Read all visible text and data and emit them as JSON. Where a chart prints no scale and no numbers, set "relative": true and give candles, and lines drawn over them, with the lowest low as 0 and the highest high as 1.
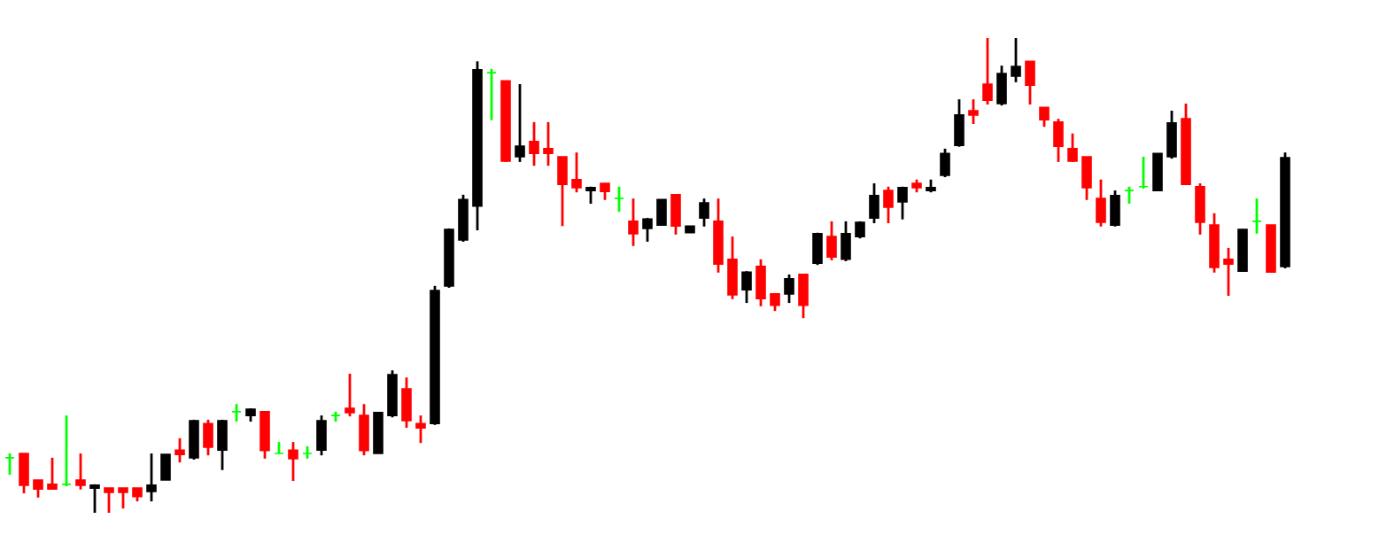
{
  "chart_data": {
    "type": "candlestick",
    "relative": true,
    "categories": [
      null,
      null,
      null,
      null,
      null,
      null,
      null,
      null,
      null,
      null,
      null,
      null,
      null,
      null,
      null,
      null,
      null,
      null,
      null,
      null,
      null,
      null,
      null,
      null,
      null,
      null,
      null,
      null,
      null,
      null,
      null,
      null,
      null,
      null,
      null,
      null,
      null,
      null,
      null,
      null,
      null,
      null,
      null,
      null,
      null,
      null,
      null,
      null,
      null,
      null,
      null,
      null,
      null,
      null,
      null,
      null,
      null,
      null,
      null,
      null,
      null,
      null,
      null,
      null,
      null,
      null,
      null,
      null,
      null,
      null,
      null,
      null,
      null,
      null,
      null,
      null,
      null,
      null,
      null,
      null,
      null,
      null,
      null,
      null,
      null,
      null,
      null,
      null,
      null,
      null,
      null
    ],
    "ohlc": [
      [
        0.116,
        0.125,
        0.08,
        0.116
      ],
      [
        0.125,
        0.125,
        0.041,
        0.058
      ],
      [
        0.069,
        0.069,
        0.032,
        0.05
      ],
      [
        0.06,
        0.116,
        0.049,
        0.05
      ],
      [
        0.06,
        0.205,
        0.056,
        0.06
      ],
      [
        0.069,
        0.125,
        0.049,
        0.058
      ],
      [
        0.052,
        0.06,
        0.0,
        0.058
      ],
      [
        0.052,
        0.052,
        0.0,
        0.043
      ],
      [
        0.052,
        0.052,
        0.009,
        0.043
      ],
      [
        0.052,
        0.052,
        0.024,
        0.034
      ],
      [
        0.045,
        0.125,
        0.024,
        0.058
      ],
      [
        0.069,
        0.123,
        0.069,
        0.123
      ],
      [
        0.132,
        0.157,
        0.106,
        0.123
      ],
      [
        0.116,
        0.196,
        0.112,
        0.194
      ],
      [
        0.188,
        0.196,
        0.121,
        0.138
      ],
      [
        0.132,
        0.196,
        0.09,
        0.194
      ],
      [
        0.213,
        0.229,
        0.192,
        0.213
      ],
      [
        0.205,
        0.22,
        0.192,
        0.218
      ],
      [
        0.213,
        0.213,
        0.114,
        0.131
      ],
      [
        0.125,
        0.149,
        0.125,
        0.125
      ],
      [
        0.132,
        0.149,
        0.067,
        0.114
      ],
      [
        0.125,
        0.14,
        0.114,
        0.125
      ],
      [
        0.132,
        0.205,
        0.121,
        0.194
      ],
      [
        0.205,
        0.213,
        0.192,
        0.205
      ],
      [
        0.22,
        0.293,
        0.203,
        0.211
      ],
      [
        0.205,
        0.229,
        0.121,
        0.131
      ],
      [
        0.125,
        0.211,
        0.125,
        0.211
      ],
      [
        0.205,
        0.3,
        0.201,
        0.291
      ],
      [
        0.261,
        0.285,
        0.179,
        0.194
      ],
      [
        0.188,
        0.205,
        0.147,
        0.179
      ],
      [
        0.188,
        0.478,
        0.185,
        0.468
      ],
      [
        0.478,
        0.599,
        0.474,
        0.597
      ],
      [
        0.575,
        0.67,
        0.571,
        0.66
      ],
      [
        0.646,
        0.951,
        0.595,
        0.933
      ],
      [
        0.927,
        0.935,
        0.827,
        0.927
      ],
      [
        0.91,
        0.91,
        0.739,
        0.741
      ],
      [
        0.75,
        0.903,
        0.739,
        0.772
      ],
      [
        0.782,
        0.823,
        0.731,
        0.757
      ],
      [
        0.767,
        0.823,
        0.731,
        0.757
      ],
      [
        0.75,
        0.75,
        0.604,
        0.692
      ],
      [
        0.702,
        0.759,
        0.675,
        0.685
      ],
      [
        0.679,
        0.687,
        0.651,
        0.685
      ],
      [
        0.694,
        0.694,
        0.659,
        0.677
      ],
      [
        0.662,
        0.687,
        0.634,
        0.662
      ],
      [
        0.614,
        0.662,
        0.562,
        0.588
      ],
      [
        0.599,
        0.621,
        0.571,
        0.619
      ],
      [
        0.606,
        0.66,
        0.606,
        0.66
      ],
      [
        0.67,
        0.67,
        0.586,
        0.604
      ],
      [
        0.59,
        0.604,
        0.59,
        0.604
      ],
      [
        0.621,
        0.662,
        0.603,
        0.653
      ],
      [
        0.614,
        0.662,
        0.506,
        0.524
      ],
      [
        0.534,
        0.582,
        0.45,
        0.459
      ],
      [
        0.47,
        0.509,
        0.442,
        0.507
      ],
      [
        0.519,
        0.534,
        0.435,
        0.451
      ],
      [
        0.461,
        0.461,
        0.425,
        0.437
      ],
      [
        0.461,
        0.502,
        0.442,
        0.493
      ],
      [
        0.502,
        0.502,
        0.41,
        0.437
      ],
      [
        0.526,
        0.59,
        0.522,
        0.588
      ],
      [
        0.582,
        0.614,
        0.532,
        0.539
      ],
      [
        0.534,
        0.614,
        0.53,
        0.588
      ],
      [
        0.582,
        0.614,
        0.578,
        0.612
      ],
      [
        0.621,
        0.694,
        0.61,
        0.668
      ],
      [
        0.679,
        0.687,
        0.61,
        0.644
      ],
      [
        0.655,
        0.687,
        0.618,
        0.685
      ],
      [
        0.694,
        0.702,
        0.675,
        0.685
      ],
      [
        0.679,
        0.702,
        0.675,
        0.685
      ],
      [
        0.711,
        0.767,
        0.707,
        0.757
      ],
      [
        0.774,
        0.871,
        0.771,
        0.838
      ],
      [
        0.847,
        0.871,
        0.819,
        0.838
      ],
      [
        0.903,
        1.0,
        0.86,
        0.869
      ],
      [
        0.862,
        0.942,
        0.858,
        0.925
      ],
      [
        0.92,
        1.0,
        0.907,
        0.94
      ],
      [
        0.951,
        0.951,
        0.86,
        0.901
      ],
      [
        0.854,
        0.854,
        0.813,
        0.828
      ],
      [
        0.823,
        0.83,
        0.739,
        0.772
      ],
      [
        0.767,
        0.799,
        0.739,
        0.741
      ],
      [
        0.75,
        0.75,
        0.659,
        0.685
      ],
      [
        0.662,
        0.702,
        0.603,
        0.612
      ],
      [
        0.606,
        0.679,
        0.603,
        0.668
      ],
      [
        0.679,
        0.687,
        0.651,
        0.679
      ],
      [
        0.687,
        0.75,
        0.683,
        0.687
      ],
      [
        0.679,
        0.757,
        0.679,
        0.757
      ],
      [
        0.75,
        0.847,
        0.746,
        0.821
      ],
      [
        0.83,
        0.862,
        0.692,
        0.692
      ],
      [
        0.687,
        0.694,
        0.586,
        0.612
      ],
      [
        0.606,
        0.631,
        0.506,
        0.517
      ],
      [
        0.534,
        0.558,
        0.457,
        0.524
      ],
      [
        0.509,
        0.597,
        0.509,
        0.597
      ],
      [
        0.614,
        0.662,
        0.588,
        0.614
      ],
      [
        0.606,
        0.606,
        0.506,
        0.507
      ],
      [
        0.519,
        0.759,
        0.515,
        0.748
      ]
    ],
    "colors": [
      "#00ff00",
      "#ff0000",
      "#ff0000",
      "#ff0000",
      "#00ff00",
      "#ff0000",
      "#000000",
      "#ff0000",
      "#ff0000",
      "#ff0000",
      "#000000",
      "#000000",
      "#ff0000",
      "#000000",
      "#ff0000",
      "#000000",
      "#00ff00",
      "#000000",
      "#ff0000",
      "#00ff00",
      "#ff0000",
      "#00ff00",
      "#000000",
      "#00ff00",
      "#ff0000",
      "#ff0000",
      "#000000",
      "#000000",
      "#ff0000",
      "#ff0000",
      "#000000",
      "#000000",
      "#000000",
      "#000000",
      "#00ff00",
      "#ff0000",
      "#000000",
      "#ff0000",
      "#ff0000",
      "#ff0000",
      "#ff0000",
      "#000000",
      "#ff0000",
      "#00ff00",
      "#ff0000",
      "#000000",
      "#000000",
      "#ff0000",
      "#000000",
      "#000000",
      "#ff0000",
      "#ff0000",
      "#000000",
      "#ff0000",
      "#ff0000",
      "#000000",
      "#ff0000",
      "#000000",
      "#ff0000",
      "#000000",
      "#000000",
      "#000000",
      "#ff0000",
      "#000000",
      "#ff0000",
      "#000000",
      "#000000",
      "#000000",
      "#ff0000",
      "#ff0000",
      "#000000",
      "#000000",
      "#ff0000",
      "#ff0000",
      "#ff0000",
      "#ff0000",
      "#ff0000",
      "#ff0000",
      "#000000",
      "#00ff00",
      "#00ff00",
      "#000000",
      "#000000",
      "#ff0000",
      "#ff0000",
      "#ff0000",
      "#ff0000",
      "#000000",
      "#00ff00",
      "#ff0000",
      "#000000"
    ]
  }
}
